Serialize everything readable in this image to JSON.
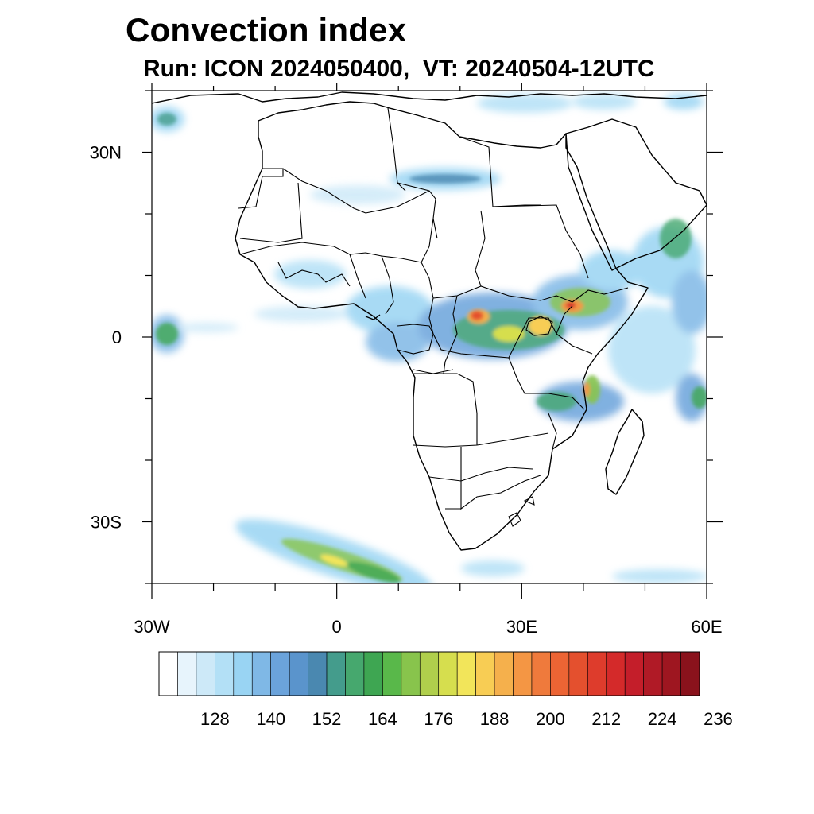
{
  "title": "Convection index",
  "subtitle": "Run: ICON 2024050400,  VT: 20240504-12UTC",
  "map": {
    "lon_range": [
      -30,
      60
    ],
    "lat_range": [
      -40,
      40
    ],
    "lat_ticks": [
      {
        "lat": 30,
        "label": "30N"
      },
      {
        "lat": 0,
        "label": "0"
      },
      {
        "lat": -30,
        "label": "30S"
      }
    ],
    "lon_ticks": [
      {
        "lon": -30,
        "label": "30W"
      },
      {
        "lon": 0,
        "label": "0"
      },
      {
        "lon": 30,
        "label": "30E"
      },
      {
        "lon": 60,
        "label": "60E"
      }
    ],
    "minor_lat_ticks": [
      40,
      20,
      10,
      -10,
      -20,
      -40
    ],
    "minor_lon_ticks": [
      -20,
      -10,
      10,
      20,
      40,
      50
    ]
  },
  "colorbar": {
    "colors": [
      "#ffffff",
      "#e7f4fc",
      "#cde9f8",
      "#b3e0f6",
      "#99d4f3",
      "#7fb8e6",
      "#6ba3db",
      "#5a94cc",
      "#4a88b0",
      "#449c8c",
      "#46a86e",
      "#3ea652",
      "#59b84a",
      "#88c44c",
      "#b0cf4c",
      "#d6de4e",
      "#f2e55a",
      "#f8cd54",
      "#f5b04c",
      "#f49644",
      "#ef7a3c",
      "#ec6434",
      "#e4502e",
      "#de3c2c",
      "#d42a2a",
      "#c41e2a",
      "#b01a26",
      "#9e1620",
      "#8a121c"
    ],
    "labels": [
      "128",
      "140",
      "152",
      "164",
      "176",
      "188",
      "200",
      "212",
      "224",
      "236"
    ]
  }
}
